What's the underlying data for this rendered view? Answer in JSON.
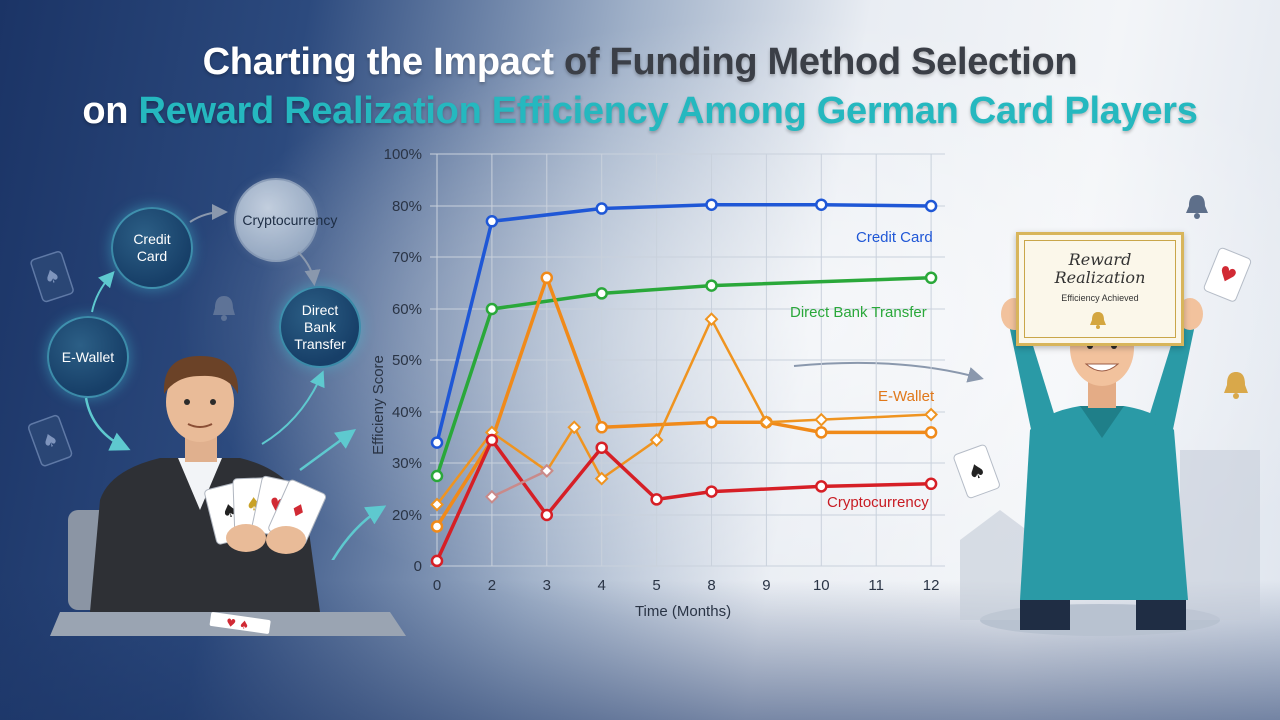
{
  "title": {
    "line1_a": "Charting the Impact",
    "line1_b": "of Funding Method Selection",
    "line2_a": "on",
    "line2_b": "Reward Realization Efficiency Among German Card Players"
  },
  "flow": {
    "nodes": [
      "E-Wallet",
      "Credit\nCard",
      "Cryptocurrency",
      "Direct Bank\nTransfer"
    ]
  },
  "certificate": {
    "heading": "Reward\nRealization",
    "subtitle": "Efficiency Achieved"
  },
  "colors": {
    "credit_card": "#1f57d6",
    "direct_bank_transfer": "#2aa83a",
    "e_wallet": "#f08a1a",
    "cryptocurrency": "#d61f26",
    "grid": "#c9d1dc"
  },
  "chart_data": {
    "type": "line",
    "xlabel": "Time (Months)",
    "ylabel": "Efficieny Score",
    "x_ticks": [
      "0",
      "2",
      "3",
      "4",
      "5",
      "8",
      "9",
      "10",
      "11",
      "12"
    ],
    "y_ticks": [
      "0",
      "20%",
      "30%",
      "40%",
      "50%",
      "60%",
      "70%",
      "80%",
      "100%"
    ],
    "ylim": [
      0,
      100
    ],
    "grid": true,
    "series": [
      {
        "name": "Credit Card",
        "color": "#1f57d6",
        "points": [
          [
            "0",
            34
          ],
          [
            "2",
            77
          ],
          [
            "4",
            79.5
          ],
          [
            "8",
            80.5
          ],
          [
            "10",
            80.5
          ],
          [
            "12",
            80
          ]
        ]
      },
      {
        "name": "Direct Bank Transfer",
        "color": "#2aa83a",
        "points": [
          [
            "0",
            27.5
          ],
          [
            "2",
            60
          ],
          [
            "4",
            63
          ],
          [
            "8",
            64.5
          ],
          [
            "12",
            66
          ]
        ]
      },
      {
        "name": "E-Wallet",
        "color": "#f08a1a",
        "points": [
          [
            "0",
            15.5
          ],
          [
            "2",
            34.5
          ],
          [
            "3",
            66
          ],
          [
            "4",
            37
          ],
          [
            "8",
            38
          ],
          [
            "9",
            38
          ],
          [
            "10",
            36
          ],
          [
            "12",
            36
          ]
        ]
      },
      {
        "name": "",
        "color": "#ef9420",
        "points": [
          [
            "0",
            22
          ],
          [
            "2",
            36
          ],
          [
            "3",
            28.5
          ],
          [
            "3.5",
            37
          ],
          [
            "4",
            27
          ],
          [
            "5",
            34.5
          ],
          [
            "8",
            58
          ],
          [
            "9",
            38
          ],
          [
            "10",
            38.5
          ],
          [
            "12",
            39.5
          ]
        ]
      },
      {
        "name": "Cryptocurrency",
        "color": "#d61f26",
        "points": [
          [
            "0",
            2
          ],
          [
            "2",
            34.5
          ],
          [
            "3",
            20
          ],
          [
            "4",
            33
          ],
          [
            "5",
            23
          ],
          [
            "8",
            24.5
          ],
          [
            "10",
            25.5
          ],
          [
            "12",
            26
          ]
        ]
      },
      {
        "name": "",
        "color": "#c98a8a",
        "points": [
          [
            "2",
            23.5
          ],
          [
            "3",
            28.5
          ]
        ]
      }
    ]
  }
}
